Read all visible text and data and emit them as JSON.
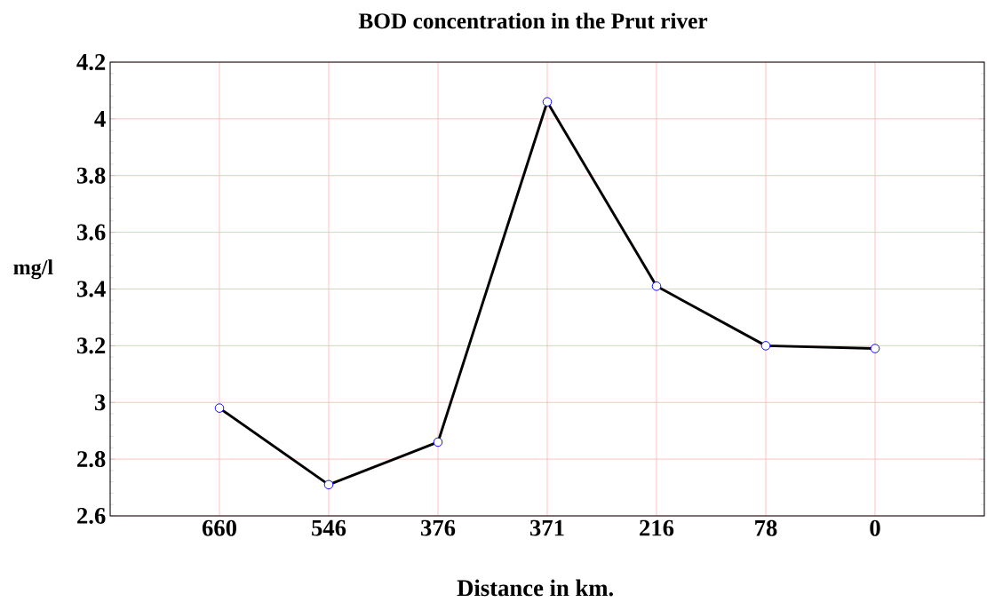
{
  "chart_data": {
    "type": "line",
    "title": "BOD concentration in the Prut river",
    "xlabel": "Distance in km.",
    "ylabel": "mg/l",
    "categories": [
      "660",
      "546",
      "376",
      "371",
      "216",
      "78",
      "0"
    ],
    "series": [
      {
        "color": "#000000",
        "values": [
          2.98,
          2.71,
          2.86,
          4.06,
          3.41,
          3.2,
          3.19
        ]
      }
    ],
    "ylim": [
      2.6,
      4.2
    ],
    "yticks": [
      2.6,
      2.8,
      3,
      3.2,
      3.4,
      3.6,
      3.8,
      4,
      4.2
    ],
    "grid": true,
    "marker": "circle",
    "line_style": "solid"
  }
}
